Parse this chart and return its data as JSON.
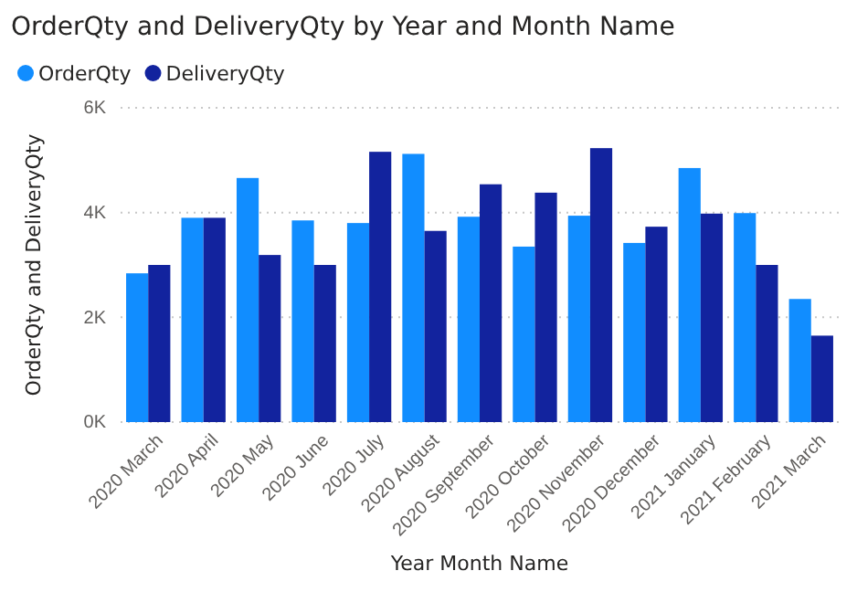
{
  "chart_data": {
    "type": "bar",
    "title": "OrderQty and DeliveryQty by Year and Month Name",
    "xlabel": "Year Month Name",
    "ylabel": "OrderQty and DeliveryQty",
    "categories": [
      "2020 March",
      "2020 April",
      "2020 May",
      "2020 June",
      "2020 July",
      "2020 August",
      "2020 September",
      "2020 October",
      "2020 November",
      "2020 December",
      "2021 January",
      "2021 February",
      "2021 March"
    ],
    "series": [
      {
        "name": "OrderQty",
        "color": "#118dff",
        "values": [
          2840,
          3900,
          4660,
          3850,
          3800,
          5120,
          3920,
          3350,
          3940,
          3420,
          4850,
          3990,
          2350
        ]
      },
      {
        "name": "DeliveryQty",
        "color": "#12239e",
        "values": [
          3000,
          3900,
          3190,
          3000,
          5160,
          3650,
          4540,
          4380,
          5230,
          3730,
          3980,
          3000,
          1650
        ]
      }
    ],
    "ylim": [
      0,
      6000
    ],
    "yticks": [
      {
        "value": 0,
        "label": "0K"
      },
      {
        "value": 2000,
        "label": "2K"
      },
      {
        "value": 4000,
        "label": "4K"
      },
      {
        "value": 6000,
        "label": "6K"
      }
    ],
    "grid": "y",
    "legend": "top left"
  }
}
